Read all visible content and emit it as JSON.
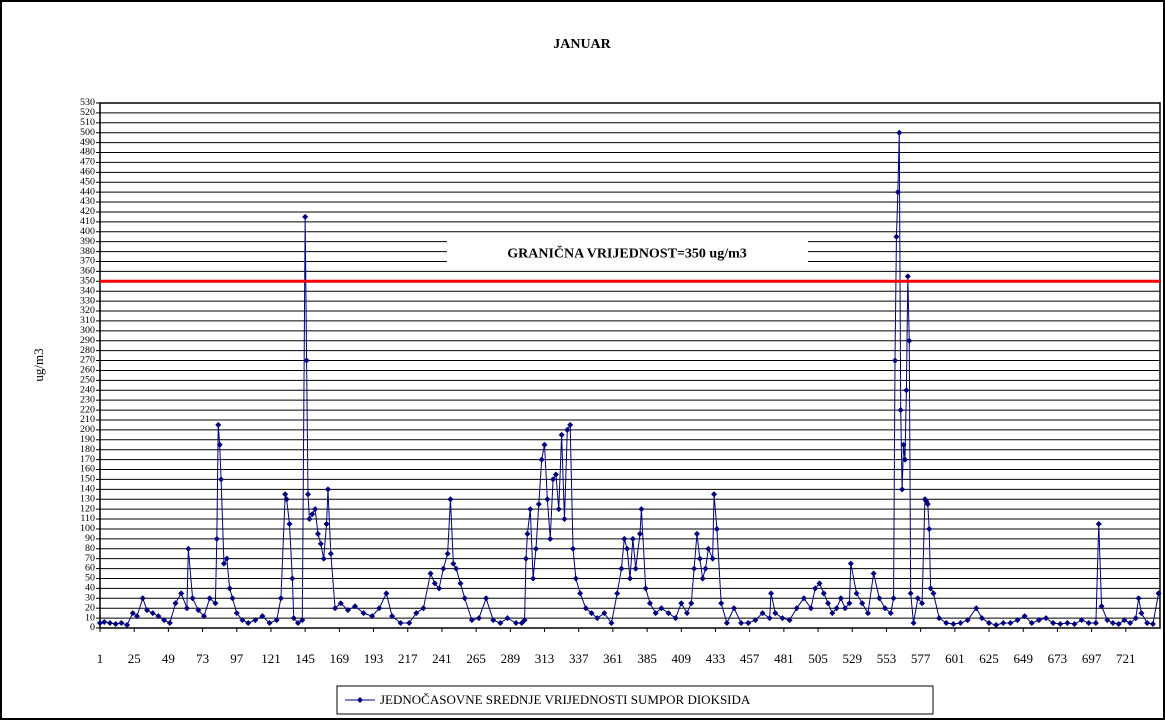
{
  "chart_data": {
    "type": "line",
    "title": "JANUAR",
    "y_label": "ug/m3",
    "xlim": [
      1,
      745
    ],
    "xticks": [
      1,
      25,
      49,
      73,
      97,
      121,
      145,
      169,
      193,
      217,
      241,
      265,
      289,
      313,
      337,
      361,
      385,
      409,
      433,
      457,
      481,
      505,
      529,
      553,
      577,
      601,
      625,
      649,
      673,
      697,
      721
    ],
    "ylim": [
      0,
      530
    ],
    "yticks": [
      0,
      10,
      20,
      30,
      40,
      50,
      60,
      70,
      80,
      90,
      100,
      110,
      120,
      130,
      140,
      150,
      160,
      170,
      180,
      190,
      200,
      210,
      220,
      230,
      240,
      250,
      260,
      270,
      280,
      290,
      300,
      310,
      320,
      330,
      340,
      350,
      360,
      370,
      380,
      390,
      400,
      410,
      420,
      430,
      440,
      450,
      460,
      470,
      480,
      490,
      500,
      510,
      520,
      530
    ],
    "grid": true,
    "threshold": {
      "value": 350,
      "label": "GRANIČNA VRIJEDNOST=350 ug/m3",
      "color": "#ff0000"
    },
    "legend": "bottom",
    "series": [
      {
        "name": "JEDNOČASOVNE SREDNJE VRIJEDNOSTI SUMPOR DIOKSIDA",
        "color": "#000080",
        "x": [
          1,
          4,
          8,
          12,
          16,
          20,
          24,
          27,
          31,
          34,
          38,
          42,
          46,
          50,
          54,
          58,
          62,
          63,
          66,
          70,
          74,
          78,
          82,
          83,
          84,
          85,
          86,
          88,
          90,
          92,
          94,
          97,
          101,
          105,
          110,
          115,
          120,
          125,
          128,
          131,
          132,
          134,
          136,
          137,
          140,
          143,
          145,
          146,
          147,
          148,
          150,
          152,
          154,
          156,
          158,
          160,
          161,
          163,
          166,
          170,
          175,
          180,
          186,
          192,
          197,
          202,
          206,
          212,
          218,
          223,
          228,
          233,
          236,
          239,
          242,
          245,
          247,
          249,
          251,
          254,
          257,
          262,
          267,
          272,
          277,
          282,
          287,
          293,
          297,
          299,
          300,
          301,
          303,
          305,
          307,
          309,
          311,
          313,
          315,
          317,
          319,
          321,
          323,
          325,
          327,
          329,
          331,
          333,
          335,
          338,
          342,
          346,
          350,
          355,
          360,
          364,
          367,
          369,
          371,
          373,
          375,
          377,
          380,
          381,
          384,
          387,
          391,
          395,
          400,
          405,
          409,
          413,
          416,
          418,
          420,
          422,
          424,
          426,
          428,
          431,
          432,
          434,
          437,
          441,
          446,
          451,
          456,
          461,
          466,
          471,
          472,
          475,
          480,
          485,
          490,
          495,
          500,
          503,
          506,
          509,
          512,
          515,
          518,
          521,
          524,
          527,
          528,
          532,
          536,
          540,
          544,
          548,
          552,
          556,
          558,
          559,
          560,
          561,
          562,
          563,
          564,
          565,
          566,
          567,
          568,
          569,
          570,
          572,
          575,
          578,
          580,
          581,
          582,
          583,
          584,
          586,
          590,
          595,
          600,
          605,
          610,
          616,
          620,
          625,
          630,
          635,
          640,
          645,
          650,
          655,
          660,
          665,
          670,
          675,
          680,
          685,
          690,
          695,
          700,
          702,
          704,
          708,
          712,
          716,
          720,
          724,
          728,
          730,
          732,
          736,
          740,
          744
        ],
        "values": [
          5,
          6,
          5,
          4,
          5,
          3,
          15,
          12,
          30,
          18,
          15,
          12,
          8,
          5,
          25,
          35,
          20,
          80,
          30,
          18,
          12,
          30,
          25,
          90,
          205,
          185,
          150,
          65,
          70,
          40,
          30,
          15,
          8,
          5,
          8,
          12,
          5,
          8,
          30,
          135,
          130,
          105,
          50,
          10,
          5,
          8,
          415,
          270,
          135,
          110,
          115,
          120,
          95,
          85,
          70,
          105,
          140,
          75,
          20,
          25,
          18,
          22,
          15,
          12,
          20,
          35,
          12,
          5,
          5,
          15,
          20,
          55,
          45,
          40,
          60,
          75,
          130,
          65,
          60,
          45,
          30,
          8,
          10,
          30,
          8,
          5,
          10,
          5,
          5,
          8,
          70,
          95,
          120,
          50,
          80,
          125,
          170,
          185,
          130,
          90,
          150,
          155,
          120,
          195,
          110,
          200,
          205,
          80,
          50,
          35,
          20,
          15,
          10,
          15,
          5,
          35,
          60,
          90,
          80,
          50,
          90,
          60,
          95,
          120,
          40,
          25,
          15,
          20,
          15,
          10,
          25,
          15,
          25,
          60,
          95,
          70,
          50,
          60,
          80,
          70,
          135,
          100,
          25,
          5,
          20,
          5,
          5,
          8,
          15,
          10,
          35,
          15,
          10,
          8,
          20,
          30,
          20,
          40,
          45,
          35,
          25,
          15,
          20,
          30,
          20,
          25,
          65,
          35,
          25,
          15,
          55,
          30,
          20,
          15,
          30,
          270,
          395,
          440,
          500,
          220,
          140,
          185,
          170,
          240,
          355,
          290,
          35,
          5,
          30,
          25,
          130,
          128,
          125,
          100,
          40,
          35,
          10,
          5,
          4,
          5,
          8,
          20,
          10,
          5,
          3,
          5,
          5,
          8,
          12,
          5,
          8,
          10,
          5,
          4,
          5,
          4,
          8,
          5,
          5,
          105,
          22,
          8,
          5,
          4,
          8,
          5,
          10,
          30,
          15,
          5,
          4,
          35
        ]
      }
    ]
  }
}
